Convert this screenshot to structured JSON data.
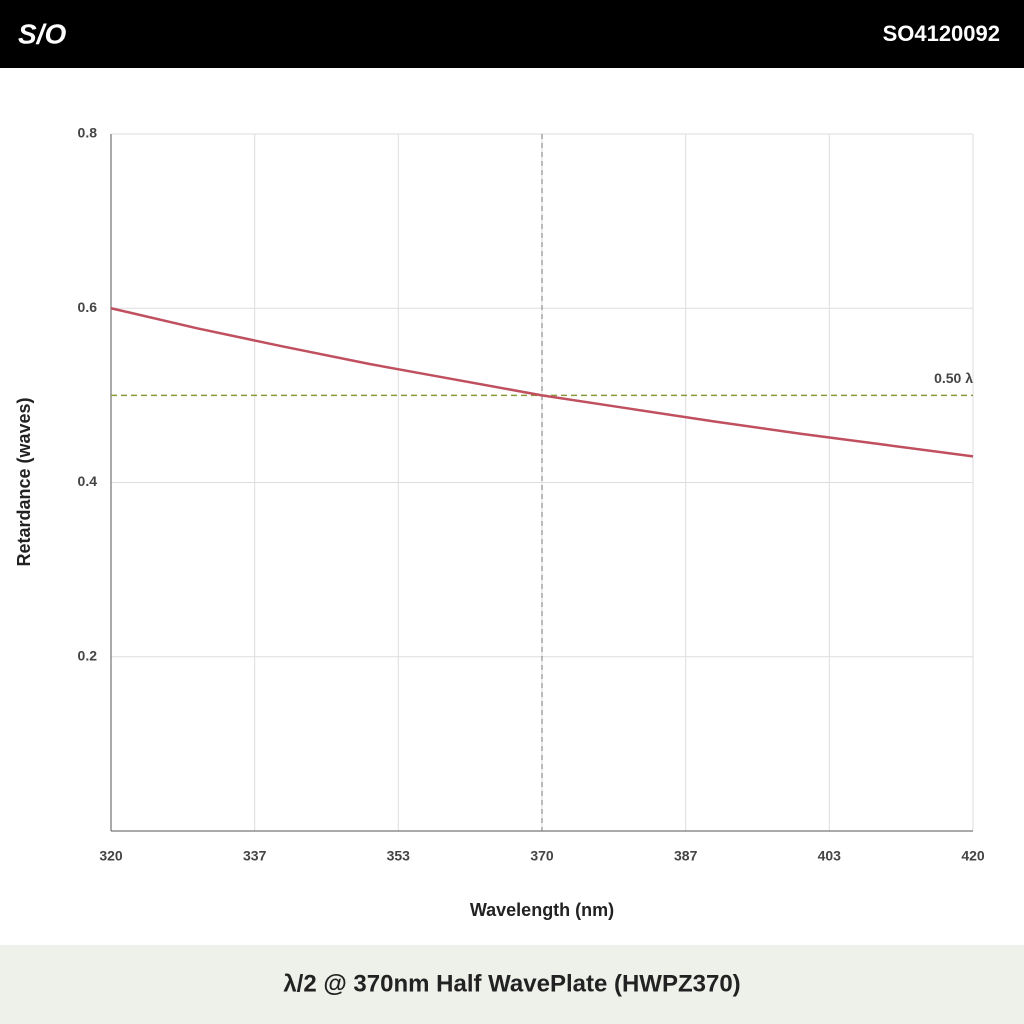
{
  "header": {
    "logo": "S/O",
    "code": "SO4120092"
  },
  "chart_data": {
    "type": "line",
    "title": "λ/2 @ 370nm Half WavePlate (HWPZ370)",
    "xlabel": "Wavelength (nm)",
    "ylabel": "Retardance (waves)",
    "x": [
      320,
      330,
      340,
      350,
      360,
      370,
      380,
      390,
      400,
      410,
      420
    ],
    "values": [
      0.6,
      0.577,
      0.556,
      0.536,
      0.518,
      0.5,
      0.485,
      0.47,
      0.456,
      0.443,
      0.43
    ],
    "color": "#c0505f",
    "xlim": [
      320,
      420
    ],
    "xticks": [
      320,
      {
        "value": 336.67,
        "label": "337"
      },
      {
        "value": 353.33,
        "label": "353"
      },
      370,
      {
        "value": 386.67,
        "label": "387"
      },
      {
        "value": 403.33,
        "label": "403"
      },
      420
    ],
    "ylim": [
      0,
      0.8
    ],
    "yticks": [
      0.2,
      0.4,
      0.6,
      0.8
    ],
    "grid": true,
    "hline": {
      "value": 0.5,
      "label": "0.50 λ",
      "color": "#8a9a3a"
    },
    "vline": {
      "value": 370,
      "color": "#777777"
    }
  }
}
